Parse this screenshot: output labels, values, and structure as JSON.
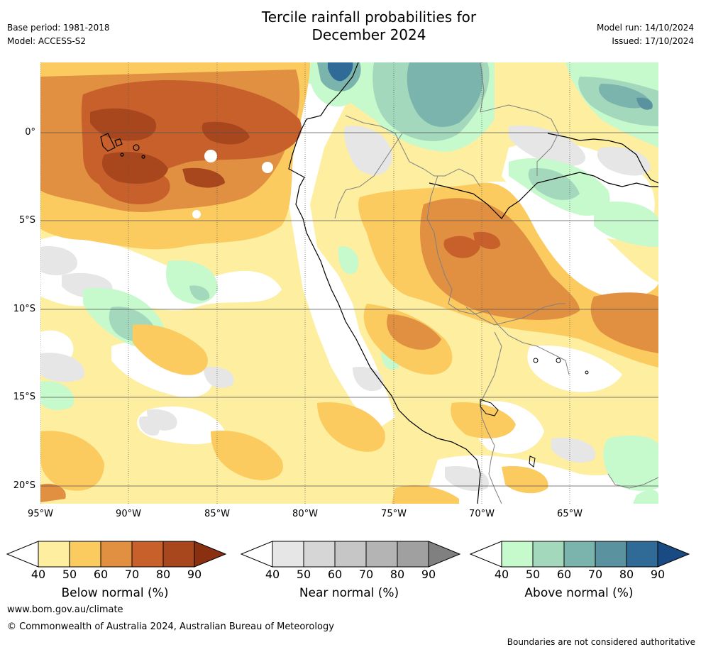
{
  "header": {
    "title_line1": "Tercile rainfall probabilities for",
    "title_line2": "December 2024",
    "base_period": "Base period: 1981-2018",
    "model": "Model: ACCESS-S2",
    "model_run": "Model run: 14/10/2024",
    "issued": "Issued: 17/10/2024"
  },
  "map": {
    "lat_labels": [
      "0°",
      "5°S",
      "10°S",
      "15°S",
      "20°S"
    ],
    "lon_labels": [
      "95°W",
      "90°W",
      "85°W",
      "80°W",
      "75°W",
      "70°W",
      "65°W"
    ],
    "lon_range": [
      -95,
      -60
    ],
    "lat_range": [
      -21,
      4
    ],
    "land_color": "#ffffff",
    "coast_color": "#000000",
    "border_color": "#808080"
  },
  "legends": [
    {
      "title": "Below normal (%)",
      "ticks": [
        "40",
        "50",
        "60",
        "70",
        "80",
        "90"
      ],
      "colors": [
        "#fdeea0",
        "#fccb60",
        "#e09040",
        "#c8602c",
        "#a8461e",
        "#8a3010"
      ]
    },
    {
      "title": "Near normal (%)",
      "ticks": [
        "40",
        "50",
        "60",
        "70",
        "80",
        "90"
      ],
      "colors": [
        "#e6e6e6",
        "#d6d6d6",
        "#c6c6c6",
        "#b4b4b4",
        "#a0a0a0",
        "#808080"
      ]
    },
    {
      "title": "Above normal (%)",
      "ticks": [
        "40",
        "50",
        "60",
        "70",
        "80",
        "90"
      ],
      "colors": [
        "#c6f9cc",
        "#a4d8bc",
        "#7ab4ac",
        "#5a92a0",
        "#306a96",
        "#1a4a82"
      ]
    }
  ],
  "footer": {
    "url": "www.bom.gov.au/climate",
    "copyright": "© Commonwealth of Australia 2024, Australian Bureau of Meteorology",
    "disclaimer": "Boundaries are not considered authoritative"
  }
}
